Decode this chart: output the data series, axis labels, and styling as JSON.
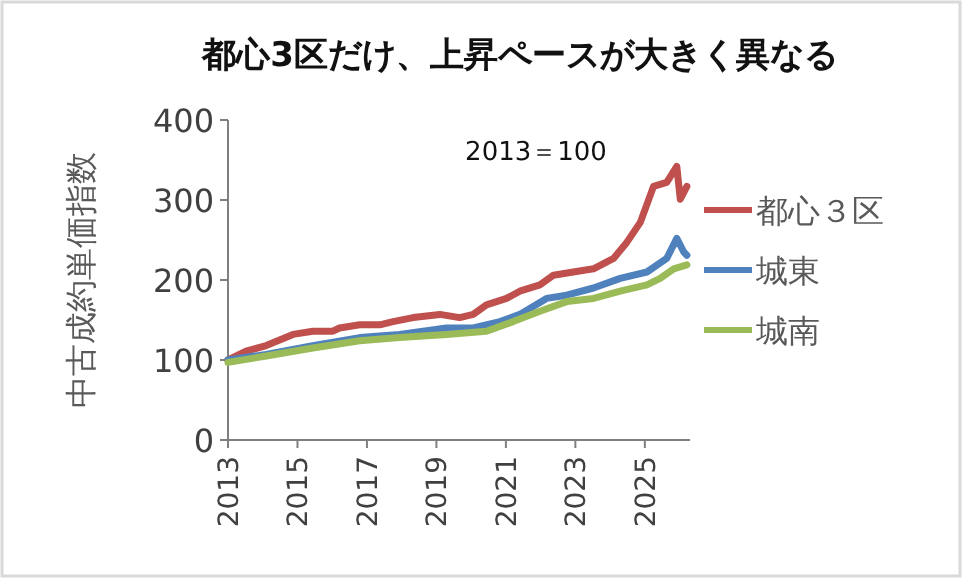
{
  "chart_data": {
    "type": "line",
    "title": "都心3区だけ、上昇ペースが大きく異なる",
    "ylabel": "中古成約単価指数",
    "annotations": [
      "2013＝100"
    ],
    "xlim": [
      2013,
      2026.3
    ],
    "xticks": [
      2013,
      2015,
      2017,
      2019,
      2021,
      2023,
      2025
    ],
    "ylim": [
      0,
      400
    ],
    "yticks": [
      0,
      100,
      200,
      300,
      400
    ],
    "grid": false,
    "legend": "right",
    "marker": "none",
    "line_style": "solid",
    "series": [
      {
        "name": "都心３区",
        "color": "#c0504d",
        "x": [
          2013,
          2013.52,
          2014.1,
          2014.87,
          2015.44,
          2016.02,
          2016.21,
          2016.79,
          2017.37,
          2017.75,
          2018.33,
          2019.1,
          2019.67,
          2020.06,
          2020.44,
          2021.02,
          2021.4,
          2021.98,
          2022.37,
          2022.94,
          2023.52,
          2024.1,
          2024.48,
          2024.87,
          2025.25,
          2025.63,
          2025.92,
          2026.02,
          2026.21
        ],
        "values": [
          100,
          111,
          118,
          132,
          136,
          136,
          140,
          144,
          144,
          148,
          153,
          157,
          153,
          157,
          169,
          177,
          186,
          194,
          206,
          210,
          214,
          227,
          247,
          272,
          317,
          322,
          342,
          301,
          317
        ]
      },
      {
        "name": "城東",
        "color": "#4f81bd",
        "x": [
          2013,
          2014.1,
          2015.44,
          2016.79,
          2017.94,
          2019.29,
          2020.06,
          2020.83,
          2021.4,
          2022.17,
          2022.75,
          2023.52,
          2024.29,
          2025.06,
          2025.63,
          2025.92,
          2026.12,
          2026.21
        ],
        "values": [
          100,
          107,
          118,
          128,
          132,
          140,
          140,
          148,
          157,
          177,
          181,
          190,
          202,
          210,
          227,
          252,
          235,
          231
        ]
      },
      {
        "name": "城南",
        "color": "#9bbb59",
        "x": [
          2013,
          2014.1,
          2015.44,
          2016.79,
          2017.94,
          2019.29,
          2020.44,
          2021.21,
          2021.98,
          2022.75,
          2023.52,
          2024.29,
          2025.06,
          2025.44,
          2025.83,
          2026.21
        ],
        "values": [
          97,
          105,
          115,
          124,
          128,
          132,
          136,
          148,
          161,
          173,
          177,
          186,
          194,
          202,
          214,
          219
        ]
      }
    ]
  }
}
